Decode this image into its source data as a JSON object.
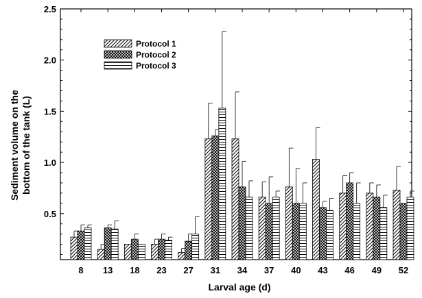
{
  "chart_data": {
    "type": "bar",
    "xlabel": "Larval age (d)",
    "ylabel_lines": [
      "Sediment volume on the",
      "bottom of the tank (L)"
    ],
    "categories": [
      "8",
      "13",
      "18",
      "23",
      "27",
      "31",
      "34",
      "37",
      "40",
      "43",
      "46",
      "49",
      "52"
    ],
    "ylim": [
      0.05,
      2.5
    ],
    "yticks": [
      "0.5",
      "1.0",
      "1.5",
      "2.0",
      "2.5"
    ],
    "legend_position": "top-left",
    "grid": false,
    "series": [
      {
        "name": "Protocol 1",
        "pattern": "diagonal-hatch",
        "values": [
          0.27,
          0.15,
          0.2,
          0.2,
          0.12,
          1.23,
          1.23,
          0.66,
          0.76,
          1.03,
          0.7,
          0.7,
          0.73
        ],
        "error": [
          0.06,
          0.05,
          0.0,
          0.05,
          0.04,
          0.35,
          0.46,
          0.15,
          0.38,
          0.31,
          0.17,
          0.1,
          0.23
        ]
      },
      {
        "name": "Protocol 2",
        "pattern": "crosshatch",
        "values": [
          0.33,
          0.36,
          0.25,
          0.25,
          0.23,
          1.26,
          0.76,
          0.6,
          0.6,
          0.56,
          0.8,
          0.66,
          0.6
        ],
        "error": [
          0.06,
          0.03,
          0.05,
          0.05,
          0.07,
          0.06,
          0.25,
          0.26,
          0.34,
          0.06,
          0.1,
          0.12,
          0.0
        ]
      },
      {
        "name": "Protocol 3",
        "pattern": "horizontal-lines",
        "values": [
          0.36,
          0.35,
          0.2,
          0.24,
          0.3,
          1.53,
          0.66,
          0.66,
          0.6,
          0.53,
          0.6,
          0.56,
          0.66
        ],
        "error": [
          0.03,
          0.08,
          0.0,
          0.03,
          0.17,
          0.75,
          0.16,
          0.06,
          0.2,
          0.12,
          0.2,
          0.12,
          0.06
        ]
      }
    ]
  }
}
